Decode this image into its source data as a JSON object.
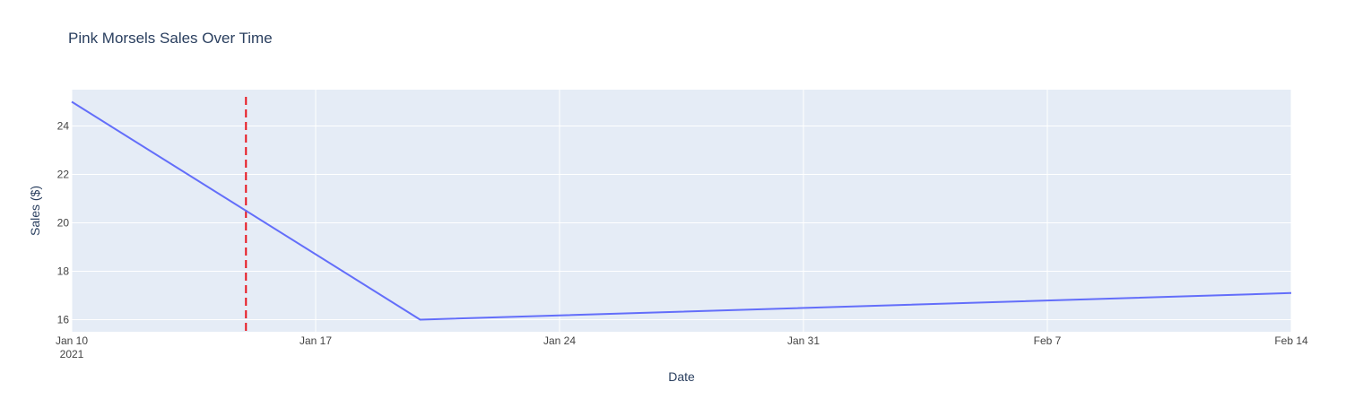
{
  "chart_data": {
    "type": "line",
    "title": "Pink Morsels Sales Over Time",
    "xlabel": "Date",
    "ylabel": "Sales ($)",
    "x_type": "date",
    "xlim": [
      "2021-01-10",
      "2021-02-14"
    ],
    "ylim": [
      15.5,
      25.5
    ],
    "x_ticks": [
      {
        "value": "2021-01-10",
        "label": "Jan 10",
        "sublabel": "2021"
      },
      {
        "value": "2021-01-17",
        "label": "Jan 17"
      },
      {
        "value": "2021-01-24",
        "label": "Jan 24"
      },
      {
        "value": "2021-01-31",
        "label": "Jan 31"
      },
      {
        "value": "2021-02-07",
        "label": "Feb 7"
      },
      {
        "value": "2021-02-14",
        "label": "Feb 14"
      }
    ],
    "y_ticks": [
      16,
      18,
      20,
      22,
      24
    ],
    "grid": true,
    "legend": "none",
    "series": [
      {
        "x": [
          "2021-01-10",
          "2021-01-20",
          "2021-02-14"
        ],
        "y": [
          25.0,
          16.0,
          17.1
        ],
        "color": "#636efa"
      }
    ],
    "reference_lines": [
      {
        "orientation": "vertical",
        "x": "2021-01-15",
        "color": "#e8141c",
        "style": "dashed"
      }
    ],
    "colors": {
      "plot_background": "#e5ecf6",
      "grid": "#ffffff",
      "text": "#2a3f5f",
      "tick_text": "#444444"
    }
  }
}
